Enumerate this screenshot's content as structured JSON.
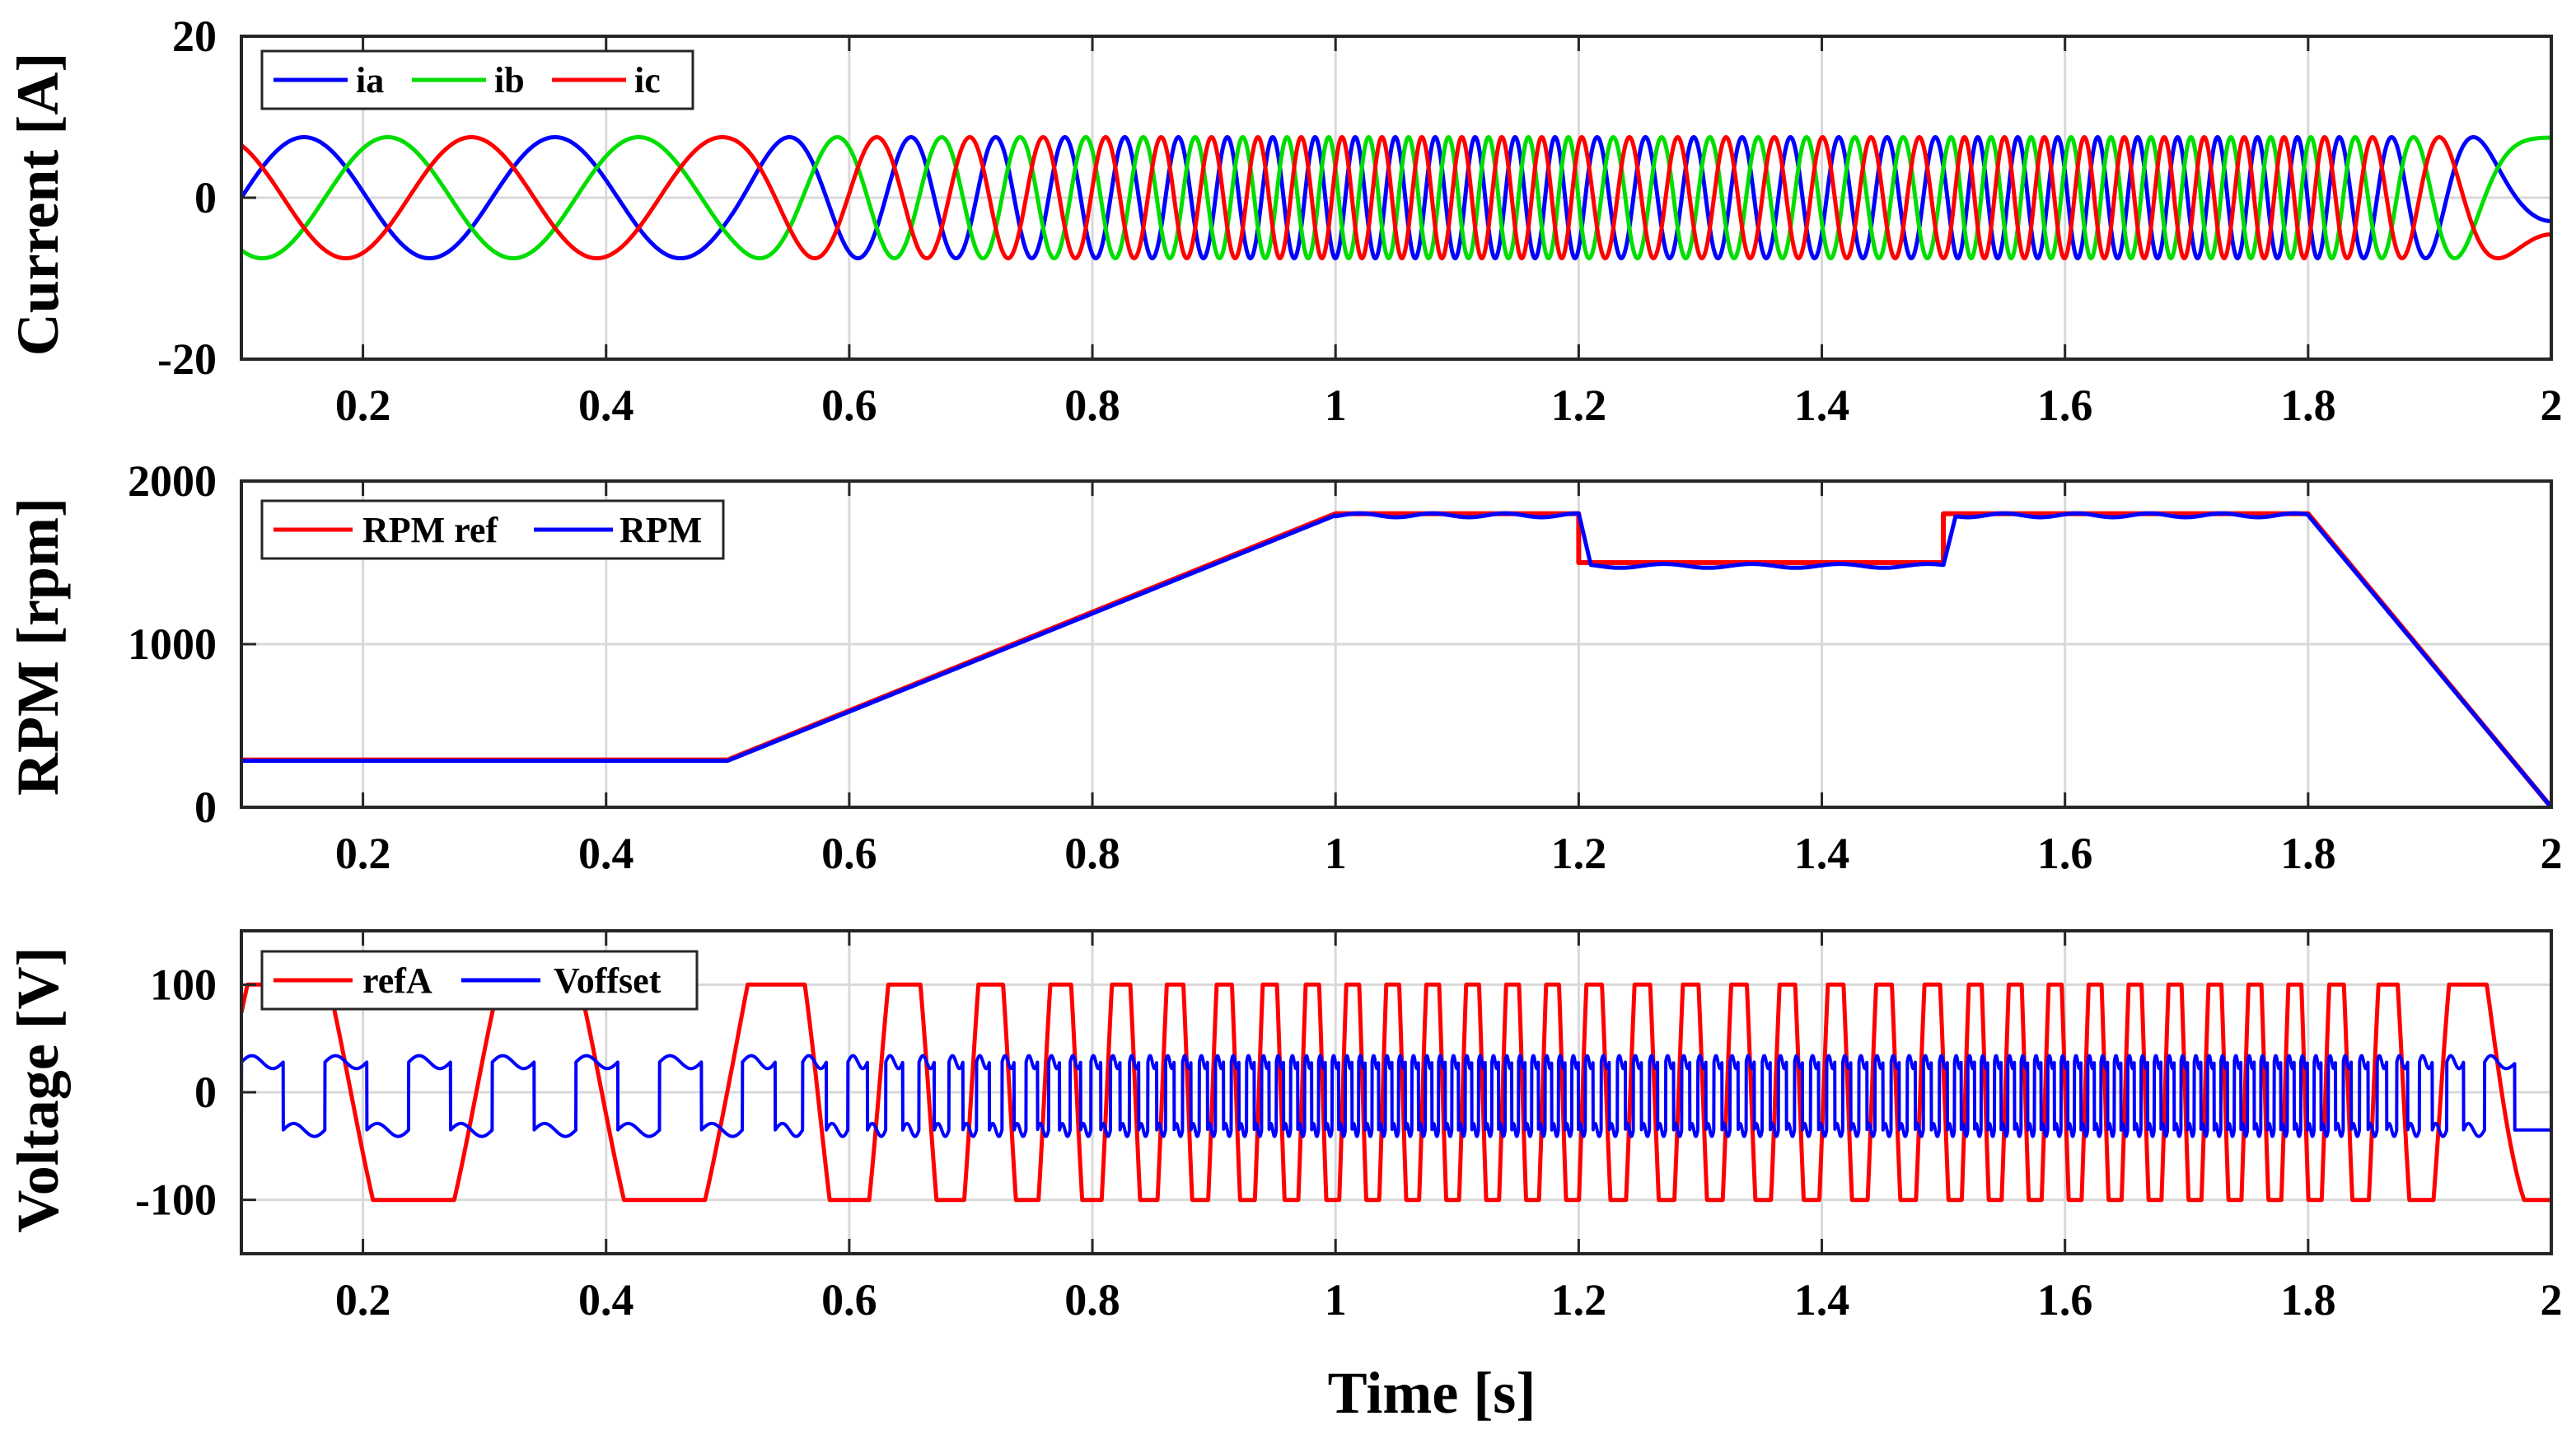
{
  "chart_data": [
    {
      "type": "line",
      "id": "current",
      "ylabel": "Current [A]",
      "xlim": [
        0.1,
        2.0
      ],
      "ylim": [
        -20,
        20
      ],
      "xticks": [
        "0.2",
        "0.4",
        "0.6",
        "0.8",
        "1",
        "1.2",
        "1.4",
        "1.6",
        "1.8",
        "2"
      ],
      "yticks": [
        "20",
        "0",
        "-20"
      ],
      "legend": [
        "ia",
        "ib",
        "ic"
      ],
      "series": [
        {
          "name": "ia",
          "color": "#0000ff",
          "amplitude": 7.5,
          "phase_deg": 0,
          "signal": "three-phase sinusoid, frequency proportional to RPM"
        },
        {
          "name": "ib",
          "color": "#00dd00",
          "amplitude": 7.5,
          "phase_deg": -120,
          "signal": "three-phase sinusoid, frequency proportional to RPM"
        },
        {
          "name": "ic",
          "color": "#ff0000",
          "amplitude": 7.5,
          "phase_deg": 120,
          "signal": "three-phase sinusoid, frequency proportional to RPM"
        }
      ]
    },
    {
      "type": "line",
      "id": "rpm",
      "ylabel": "RPM [rpm]",
      "xlim": [
        0.1,
        2.0
      ],
      "ylim": [
        0,
        2000
      ],
      "xticks": [
        "0.2",
        "0.4",
        "0.6",
        "0.8",
        "1",
        "1.2",
        "1.4",
        "1.6",
        "1.8",
        "2"
      ],
      "yticks": [
        "2000",
        "1000",
        "0"
      ],
      "legend": [
        "RPM ref",
        "RPM"
      ],
      "series": [
        {
          "name": "RPM ref",
          "color": "#ff0000",
          "x": [
            0.1,
            0.5,
            1.0,
            1.2,
            1.2,
            1.5,
            1.5,
            1.8,
            2.0
          ],
          "y": [
            290,
            290,
            1800,
            1800,
            1500,
            1500,
            1800,
            1800,
            0
          ]
        },
        {
          "name": "RPM",
          "color": "#0000ff",
          "x": [
            0.1,
            0.5,
            1.0,
            1.2,
            1.21,
            1.5,
            1.51,
            1.8,
            2.0
          ],
          "y": [
            285,
            285,
            1790,
            1790,
            1480,
            1480,
            1790,
            1790,
            0
          ]
        }
      ]
    },
    {
      "type": "line",
      "id": "voltage",
      "ylabel": "Voltage [V]",
      "xlabel": "Time [s]",
      "xlim": [
        0.1,
        2.0
      ],
      "ylim": [
        -150,
        150
      ],
      "xticks": [
        "0.2",
        "0.4",
        "0.6",
        "0.8",
        "1",
        "1.2",
        "1.4",
        "1.6",
        "1.8",
        "2"
      ],
      "yticks": [
        "100",
        "0",
        "-100"
      ],
      "legend": [
        "refA",
        "Voffset"
      ],
      "series": [
        {
          "name": "refA",
          "color": "#ff0000",
          "amplitude": 100,
          "signal": "clipped phase-A reference, frequency proportional to RPM"
        },
        {
          "name": "Voffset",
          "color": "#0000ff",
          "amplitude": 35,
          "signal": "min-max offset square wave at 3x frequency"
        }
      ]
    }
  ]
}
